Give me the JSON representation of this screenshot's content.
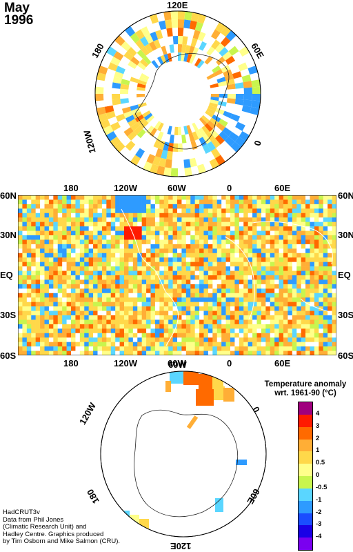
{
  "title": {
    "month": "May",
    "year": "1996"
  },
  "north_polar": {
    "lon_labels": {
      "top": "120E",
      "right": "60E",
      "right_lower": "0",
      "left": "180",
      "left_lower": "120W"
    }
  },
  "map": {
    "top_labels": [
      "180",
      "120W",
      "60W",
      "0",
      "60E"
    ],
    "bottom_labels": [
      "180",
      "120W",
      "60W",
      "0",
      "60E"
    ],
    "lat_labels_left": [
      "60N",
      "30N",
      "EQ",
      "30S",
      "60S"
    ],
    "lat_labels_right": [
      "60N",
      "30N",
      "EQ",
      "30S",
      "60S"
    ]
  },
  "south_polar": {
    "lon_labels": {
      "left_upper": "120W",
      "left_lower": "180",
      "top": "60W",
      "right_upper": "0",
      "right_lower": "60E",
      "bottom": "120E"
    }
  },
  "legend": {
    "title_line1": "Temperature anomaly",
    "title_line2": "wrt. 1961-90  (°C)",
    "ticks": [
      "4",
      "3",
      "2",
      "1",
      "0.5",
      "0",
      "-0.5",
      "-1",
      "-2",
      "-3",
      "-4"
    ],
    "colors": [
      "#a0007e",
      "#ff1a00",
      "#ff6a00",
      "#ffae36",
      "#ffd84a",
      "#ffff8a",
      "#c8f54e",
      "#5ad6ff",
      "#2e9bff",
      "#1a4dff",
      "#1a00e6",
      "#7a00f0"
    ]
  },
  "credits": [
    "HadCRUT3v",
    "Data from Phil Jones",
    "(Climatic Research Unit) and",
    "Hadley Centre.  Graphics produced",
    "by Tim Osborn and Mike Salmon (CRU)."
  ]
}
